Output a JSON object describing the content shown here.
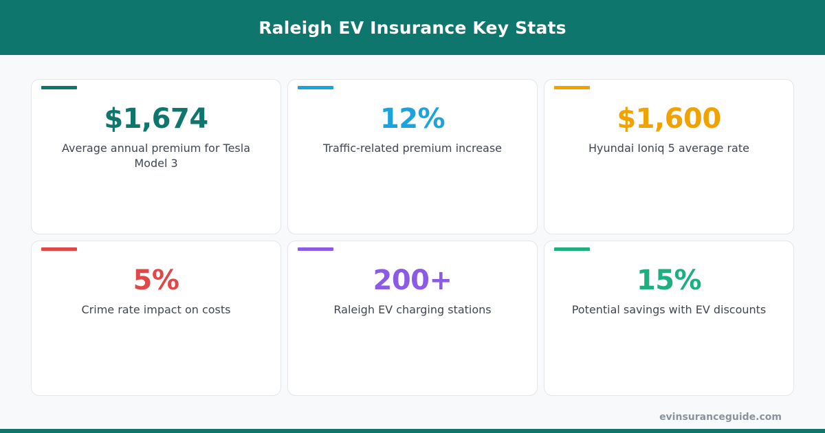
{
  "header": {
    "title": "Raleigh EV Insurance Key Stats"
  },
  "colors": {
    "brand": "#0f766e",
    "teal": "#0f766e",
    "blue": "#1aa3dc",
    "amber": "#f0a300",
    "red": "#e04848",
    "purple": "#8b5be6",
    "green": "#1fae7f"
  },
  "stats": [
    {
      "value": "$1,674",
      "label": "Average annual premium for Tesla Model 3",
      "color": "#0f766e"
    },
    {
      "value": "12%",
      "label": "Traffic-related premium increase",
      "color": "#1aa3dc"
    },
    {
      "value": "$1,600",
      "label": "Hyundai Ioniq 5 average rate",
      "color": "#f0a300"
    },
    {
      "value": "5%",
      "label": "Crime rate impact on costs",
      "color": "#e04848"
    },
    {
      "value": "200+",
      "label": "Raleigh EV charging stations",
      "color": "#8b5be6"
    },
    {
      "value": "15%",
      "label": "Potential savings with EV discounts",
      "color": "#1fae7f"
    }
  ],
  "footer": {
    "site": "evinsuranceguide.com"
  }
}
